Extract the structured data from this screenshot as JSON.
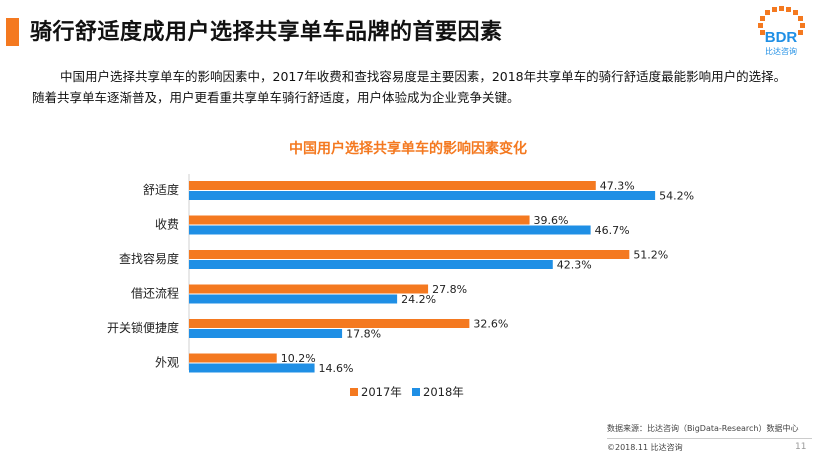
{
  "page": {
    "title": "骑行舒适度成用户选择共享单车品牌的首要因素",
    "description": "中国用户选择共享单车的影响因素中，2017年收费和查找容易度是主要因素，2018年共享单车的骑行舒适度最能影响用户的选择。随着共享单车逐渐普及，用户更看重共享单车骑行舒适度，用户体验成为企业竞争关键。",
    "logo_text": "BDR",
    "logo_sub": "比达咨询",
    "source": "数据来源：比达咨询（BigData-Research）数据中心",
    "copyright": "©2018.11  比达咨询",
    "page_number": "11"
  },
  "colors": {
    "accent": "#f47920",
    "series_2017": "#f47920",
    "series_2018": "#1f8fe5"
  },
  "chart_data": {
    "type": "bar",
    "orientation": "horizontal",
    "title": "中国用户选择共享单车的影响因素变化",
    "categories": [
      "舒适度",
      "收费",
      "查找容易度",
      "借还流程",
      "开关锁便捷度",
      "外观"
    ],
    "series": [
      {
        "name": "2017年",
        "values": [
          47.3,
          39.6,
          51.2,
          27.8,
          32.6,
          10.2
        ],
        "labels": [
          "47.3%",
          "39.6%",
          "51.2%",
          "27.8%",
          "32.6%",
          "10.2%"
        ]
      },
      {
        "name": "2018年",
        "values": [
          54.2,
          46.7,
          42.3,
          24.2,
          17.8,
          14.6
        ],
        "labels": [
          "54.2%",
          "46.7%",
          "42.3%",
          "24.2%",
          "17.8%",
          "14.6%"
        ]
      }
    ],
    "xlim": [
      0,
      60
    ],
    "grid": false,
    "legend": "bottom-center"
  }
}
